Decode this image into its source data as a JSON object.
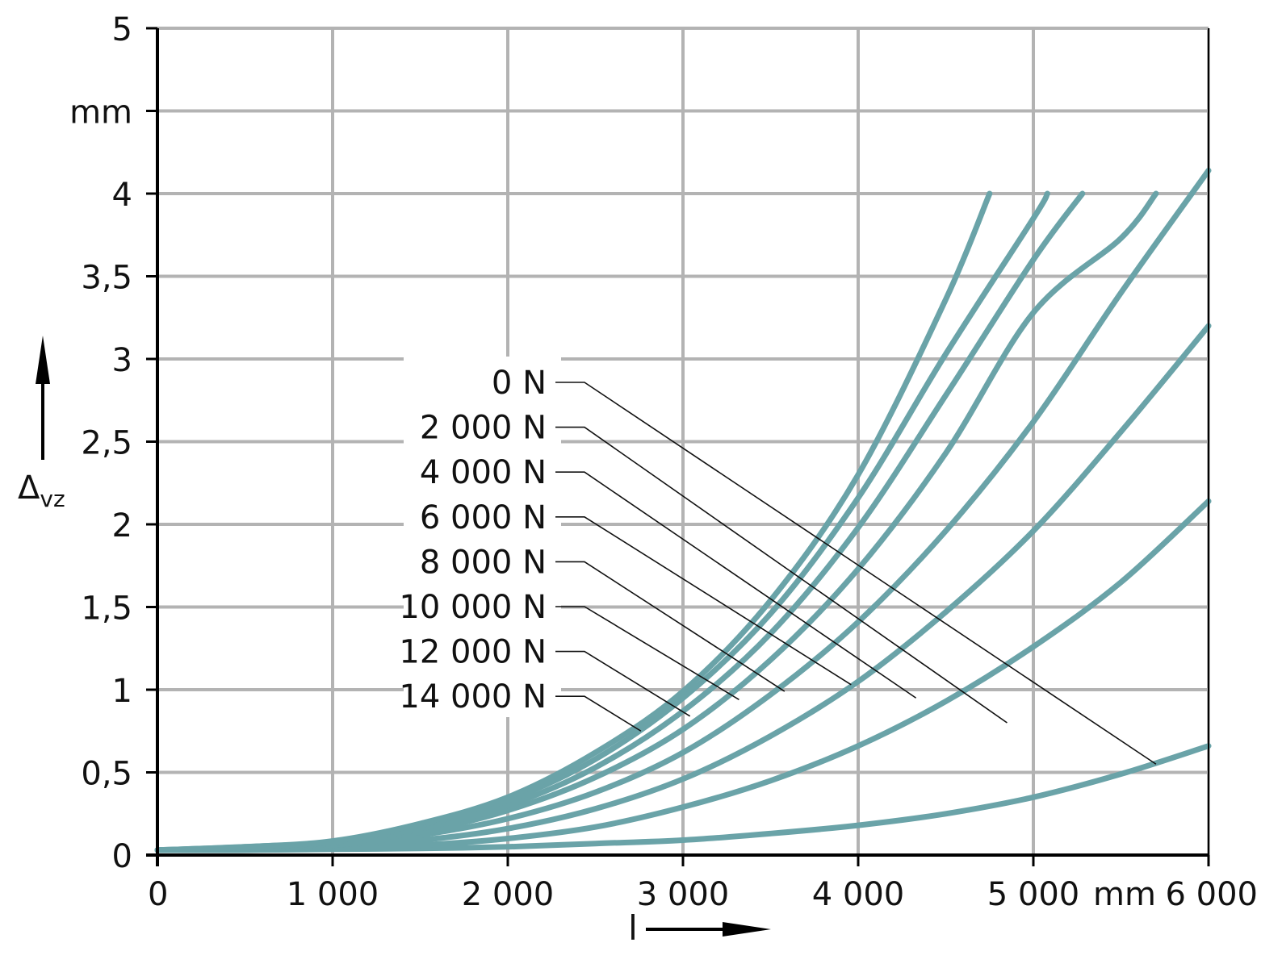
{
  "chart_data": {
    "type": "line",
    "title": "",
    "xlabel": "l",
    "ylabel": "Δvz",
    "ylabel_main": "Δ",
    "ylabel_sub": "vz",
    "x_unit": "mm",
    "y_unit": "mm",
    "xlim": [
      0,
      6000
    ],
    "ylim": [
      0,
      5
    ],
    "x_ticks": [
      0,
      1000,
      2000,
      3000,
      4000,
      5000,
      6000
    ],
    "x_tick_labels": [
      "0",
      "1 000",
      "2 000",
      "3 000",
      "4 000",
      "5 000",
      "6 000"
    ],
    "y_ticks": [
      0,
      0.5,
      1,
      1.5,
      2,
      2.5,
      3,
      3.5,
      4,
      4.5,
      5
    ],
    "y_tick_labels": [
      "0",
      "0,5",
      "1",
      "1,5",
      "2",
      "2,5",
      "3",
      "3,5",
      "4",
      "mm",
      "5"
    ],
    "grid": true,
    "line_color": "#6aa3a8",
    "series": [
      {
        "name": "0 N",
        "x": [
          0,
          500,
          1000,
          1500,
          2000,
          2500,
          3000,
          3500,
          4000,
          4500,
          5000,
          5500,
          6000
        ],
        "y": [
          0.03,
          0.03,
          0.035,
          0.04,
          0.05,
          0.07,
          0.09,
          0.13,
          0.18,
          0.25,
          0.35,
          0.49,
          0.66
        ]
      },
      {
        "name": "2 000 N",
        "x": [
          0,
          500,
          1000,
          1500,
          2000,
          2500,
          3000,
          3500,
          4000,
          4500,
          5000,
          5500,
          6000
        ],
        "y": [
          0.03,
          0.03,
          0.04,
          0.06,
          0.1,
          0.17,
          0.29,
          0.45,
          0.66,
          0.93,
          1.26,
          1.65,
          2.14
        ]
      },
      {
        "name": "4 000 N",
        "x": [
          0,
          500,
          1000,
          1500,
          2000,
          2500,
          3000,
          3500,
          4000,
          4500,
          5000,
          5500,
          6000
        ],
        "y": [
          0.03,
          0.04,
          0.06,
          0.09,
          0.16,
          0.28,
          0.46,
          0.72,
          1.05,
          1.47,
          1.96,
          2.56,
          3.2
        ]
      },
      {
        "name": "6 000 N",
        "x": [
          0,
          500,
          1000,
          1500,
          2000,
          2500,
          3000,
          3500,
          4000,
          4500,
          5000,
          5500,
          6000
        ],
        "y": [
          0.03,
          0.04,
          0.06,
          0.12,
          0.22,
          0.38,
          0.62,
          0.97,
          1.41,
          1.96,
          2.62,
          3.4,
          4.14
        ]
      },
      {
        "name": "8 000 N",
        "x": [
          0,
          500,
          1000,
          1500,
          2000,
          2500,
          3000,
          3500,
          4000,
          4500,
          5000,
          5500,
          5700
        ],
        "y": [
          0.03,
          0.04,
          0.07,
          0.14,
          0.27,
          0.47,
          0.76,
          1.18,
          1.73,
          2.43,
          3.28,
          3.73,
          4.0
        ]
      },
      {
        "name": "10 000 N",
        "x": [
          0,
          500,
          1000,
          1500,
          2000,
          2500,
          3000,
          3500,
          4000,
          4500,
          5000,
          5280
        ],
        "y": [
          0.03,
          0.045,
          0.075,
          0.16,
          0.3,
          0.53,
          0.87,
          1.34,
          1.98,
          2.78,
          3.6,
          4.0
        ]
      },
      {
        "name": "12 000 N",
        "x": [
          0,
          500,
          1000,
          1500,
          2000,
          2500,
          3000,
          3500,
          4000,
          4500,
          5000,
          5080
        ],
        "y": [
          0.03,
          0.05,
          0.08,
          0.18,
          0.33,
          0.58,
          0.95,
          1.46,
          2.16,
          3.03,
          3.85,
          4.0
        ]
      },
      {
        "name": "14 000 N",
        "x": [
          0,
          500,
          1000,
          1500,
          2000,
          2500,
          3000,
          3500,
          4000,
          4500,
          4750
        ],
        "y": [
          0.03,
          0.05,
          0.085,
          0.19,
          0.35,
          0.62,
          0.99,
          1.54,
          2.3,
          3.36,
          4.0
        ]
      }
    ],
    "series_labels": [
      "0 N",
      "2 000 N",
      "4 000 N",
      "6 000 N",
      "8 000 N",
      "10 000 N",
      "12 000 N",
      "14 000 N"
    ],
    "leader_targets": [
      {
        "x": 5700,
        "y": 0.55
      },
      {
        "x": 4850,
        "y": 0.8
      },
      {
        "x": 4330,
        "y": 0.95
      },
      {
        "x": 3960,
        "y": 1.03
      },
      {
        "x": 3580,
        "y": 0.99
      },
      {
        "x": 3320,
        "y": 0.94
      },
      {
        "x": 3040,
        "y": 0.84
      },
      {
        "x": 2760,
        "y": 0.75
      }
    ]
  }
}
